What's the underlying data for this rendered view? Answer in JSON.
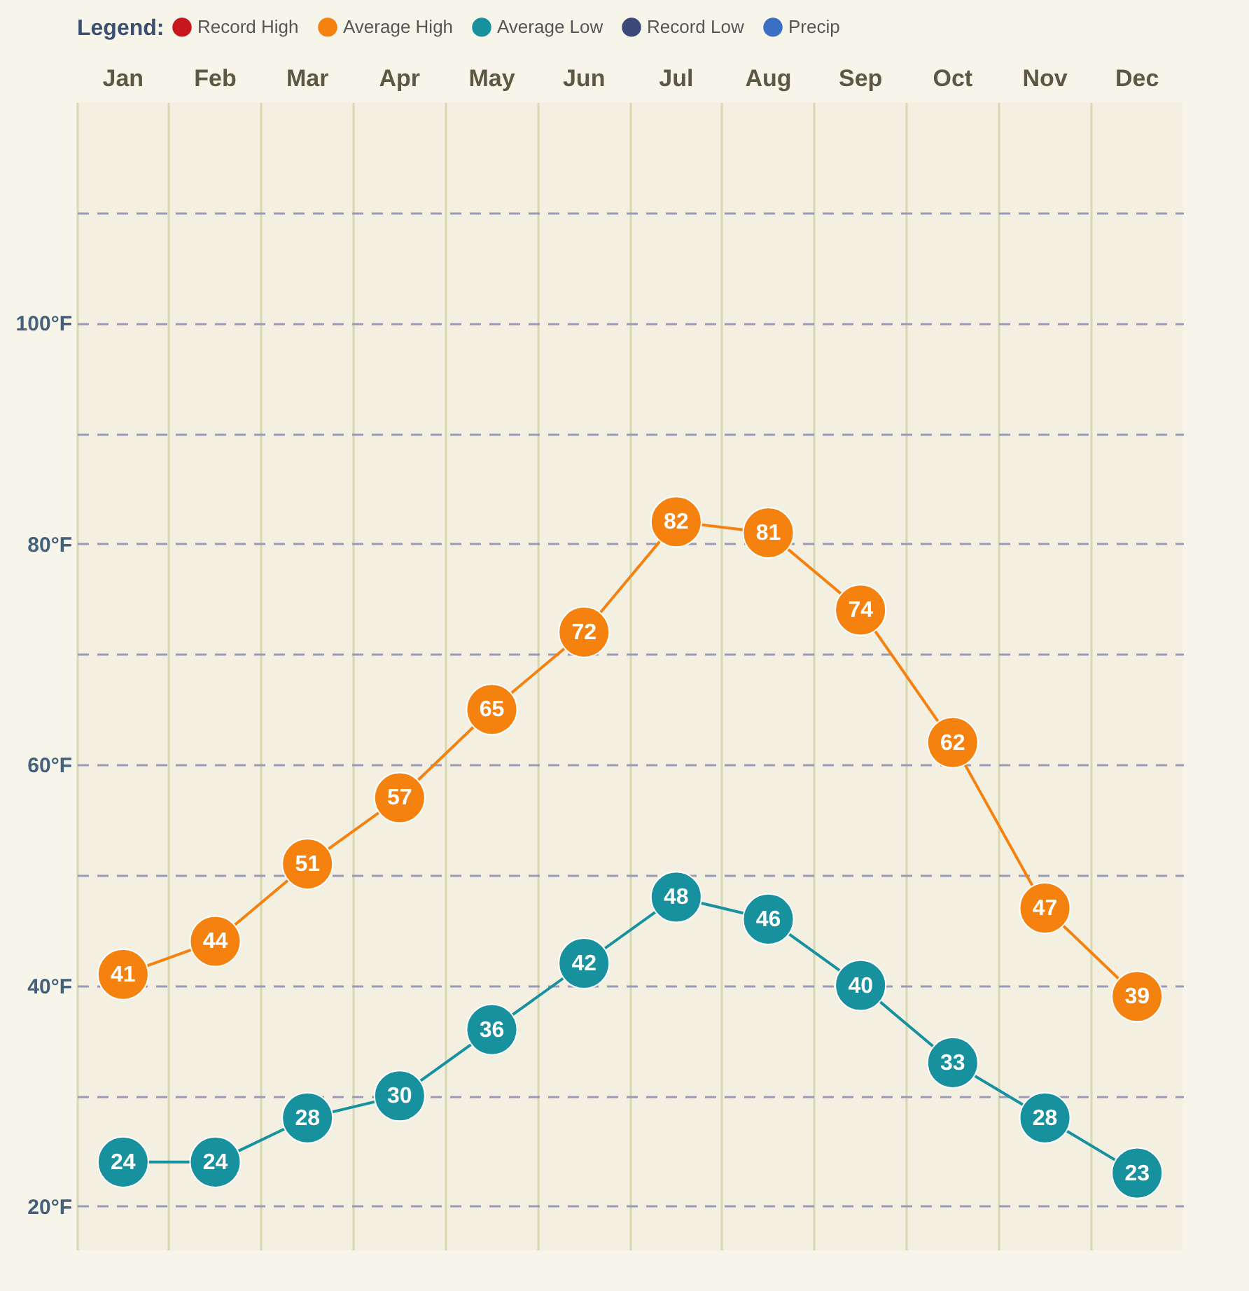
{
  "chart_data": {
    "type": "line",
    "legend_title": "Legend:",
    "legend": "top left",
    "grid": true,
    "marker": "circle",
    "data_labels": true,
    "categories": [
      "Jan",
      "Feb",
      "Mar",
      "Apr",
      "May",
      "Jun",
      "Jul",
      "Aug",
      "Sep",
      "Oct",
      "Nov",
      "Dec"
    ],
    "ylim": [
      16,
      120
    ],
    "yticks": [
      {
        "value": 20,
        "label": "20°F"
      },
      {
        "value": 30,
        "label": null
      },
      {
        "value": 40,
        "label": "40°F"
      },
      {
        "value": 50,
        "label": null
      },
      {
        "value": 60,
        "label": "60°F"
      },
      {
        "value": 70,
        "label": null
      },
      {
        "value": 80,
        "label": "80°F"
      },
      {
        "value": 90,
        "label": null
      },
      {
        "value": 100,
        "label": "100°F"
      },
      {
        "value": 110,
        "label": null
      }
    ],
    "series": [
      {
        "name": "Record High",
        "color": "#c8161d",
        "values": [
          null,
          null,
          null,
          null,
          null,
          null,
          null,
          null,
          null,
          null,
          null,
          null
        ]
      },
      {
        "name": "Average High",
        "color": "#f5820f",
        "values": [
          41,
          44,
          51,
          57,
          65,
          72,
          82,
          81,
          74,
          62,
          47,
          39
        ]
      },
      {
        "name": "Average Low",
        "color": "#17919e",
        "values": [
          24,
          24,
          28,
          30,
          36,
          42,
          48,
          46,
          40,
          33,
          28,
          23
        ]
      },
      {
        "name": "Record Low",
        "color": "#3b4a78",
        "values": [
          null,
          null,
          null,
          null,
          null,
          null,
          null,
          null,
          null,
          null,
          null,
          null
        ]
      },
      {
        "name": "Precip",
        "type": "bar",
        "color": "#3a6fc4",
        "values": [
          null,
          null,
          null,
          null,
          null,
          null,
          null,
          null,
          null,
          null,
          null,
          null
        ]
      }
    ]
  }
}
